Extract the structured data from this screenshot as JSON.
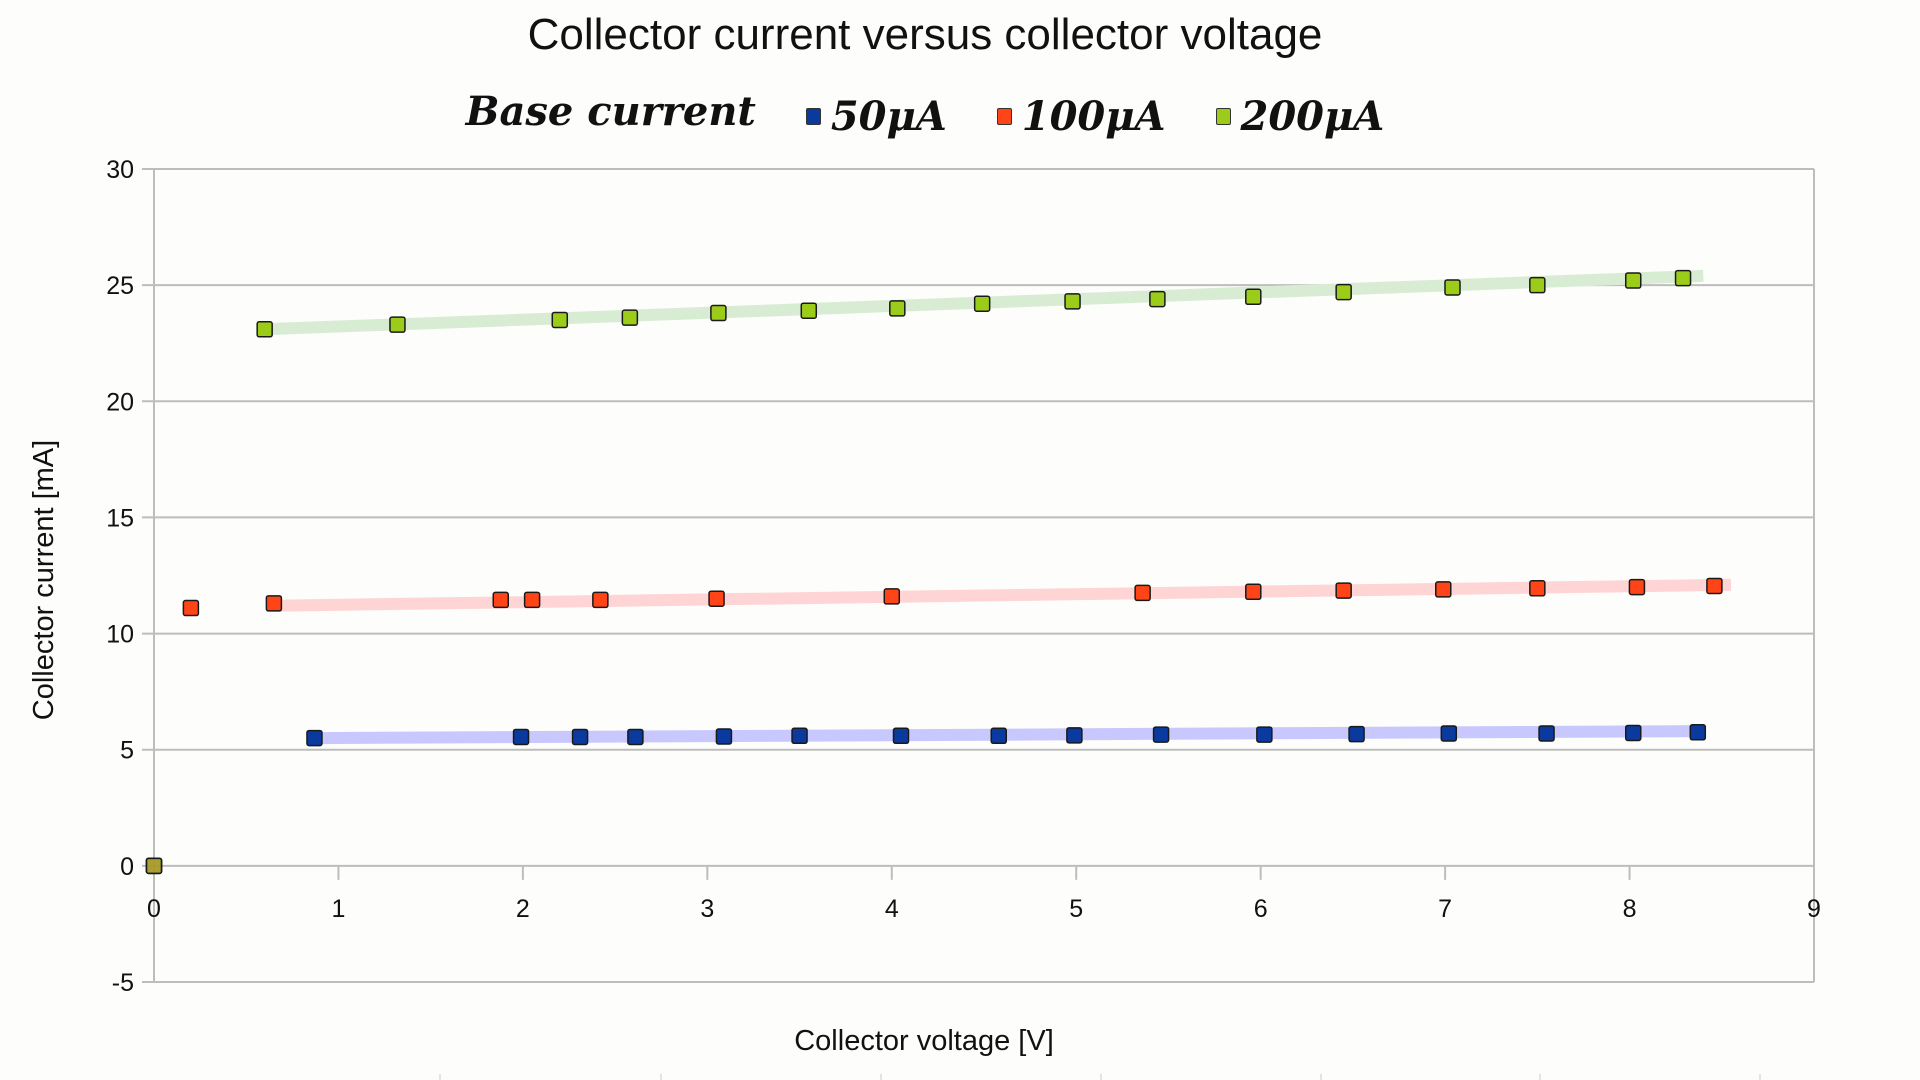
{
  "chart_data": {
    "type": "scatter",
    "title": "Collector current versus collector voltage",
    "legend_title": "Base current",
    "legend_position": "top",
    "xlabel": "Collector voltage [V]",
    "ylabel": "Collector current [mA]",
    "xlim": [
      0,
      9
    ],
    "ylim": [
      -5,
      30
    ],
    "xticks": [
      "0",
      "1",
      "2",
      "3",
      "4",
      "5",
      "6",
      "7",
      "8",
      "9"
    ],
    "yticks": [
      "-5",
      "0",
      "5",
      "10",
      "15",
      "20",
      "25",
      "30"
    ],
    "grid": true,
    "series": [
      {
        "name": "50μA",
        "color": "#0a3a9e",
        "trend_color": "#c8c8ff",
        "x": [
          0,
          0.87,
          1.99,
          2.31,
          2.61,
          3.09,
          3.5,
          4.05,
          4.58,
          4.99,
          5.46,
          6.02,
          6.52,
          7.02,
          7.55,
          8.02,
          8.37
        ],
        "y": [
          0,
          5.5,
          5.55,
          5.55,
          5.55,
          5.57,
          5.6,
          5.6,
          5.6,
          5.62,
          5.65,
          5.65,
          5.67,
          5.7,
          5.7,
          5.72,
          5.75
        ],
        "trend": {
          "x": [
            0.85,
            8.4
          ],
          "y": [
            5.5,
            5.8
          ]
        }
      },
      {
        "name": "100μA",
        "color": "#ff4517",
        "trend_color": "#ffd4d4",
        "x": [
          0,
          0.2,
          0.65,
          1.88,
          2.05,
          2.42,
          3.05,
          4.0,
          5.36,
          5.96,
          6.45,
          6.99,
          7.5,
          8.04,
          8.46
        ],
        "y": [
          0,
          11.1,
          11.3,
          11.45,
          11.45,
          11.45,
          11.5,
          11.6,
          11.75,
          11.8,
          11.85,
          11.9,
          11.95,
          12.0,
          12.05
        ],
        "trend": {
          "x": [
            0.65,
            8.55
          ],
          "y": [
            11.2,
            12.1
          ]
        }
      },
      {
        "name": "200μA",
        "color": "#9ccc1a",
        "trend_color": "#d8ecd4",
        "x": [
          0,
          0.6,
          1.32,
          2.2,
          2.58,
          3.06,
          3.55,
          4.03,
          4.49,
          4.98,
          5.44,
          5.96,
          6.45,
          7.04,
          7.5,
          8.02,
          8.29
        ],
        "y": [
          0,
          23.1,
          23.3,
          23.5,
          23.6,
          23.8,
          23.9,
          24.0,
          24.2,
          24.3,
          24.4,
          24.5,
          24.7,
          24.9,
          25.0,
          25.2,
          25.3
        ],
        "trend": {
          "x": [
            0.6,
            8.4
          ],
          "y": [
            23.1,
            25.4
          ]
        }
      }
    ]
  }
}
